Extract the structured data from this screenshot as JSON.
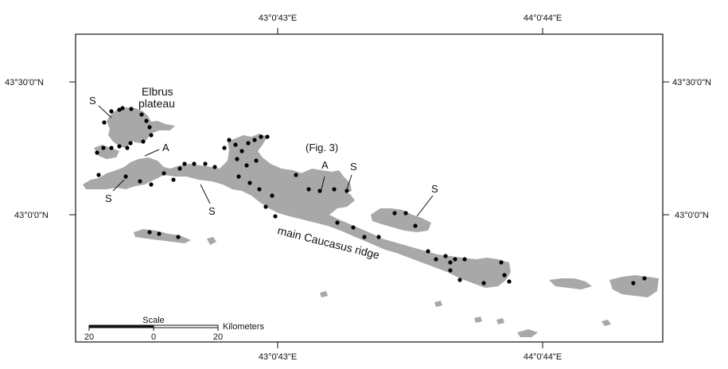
{
  "coords": {
    "top": [
      "43°0'43\"E",
      "44°0'44\"E"
    ],
    "bottom": [
      "43°0'43\"E",
      "44°0'44\"E"
    ],
    "left": [
      "43°30'0\"N",
      "43°0'0\"N"
    ],
    "right": [
      "43°30'0\"N",
      "43°0'0\"N"
    ]
  },
  "labels": {
    "elbrus_line1": "Elbrus",
    "elbrus_line2": "plateau",
    "fig_ref": "(Fig. 3)",
    "s": "S",
    "a": "A",
    "ridge": "main Caucasus ridge"
  },
  "scale": {
    "title": "Scale",
    "unit": "Kilometers",
    "ticks": [
      "20",
      "0",
      "20"
    ]
  },
  "colors": {
    "glacier": "#a8a8a8",
    "point": "#000000",
    "frame": "#111111"
  }
}
